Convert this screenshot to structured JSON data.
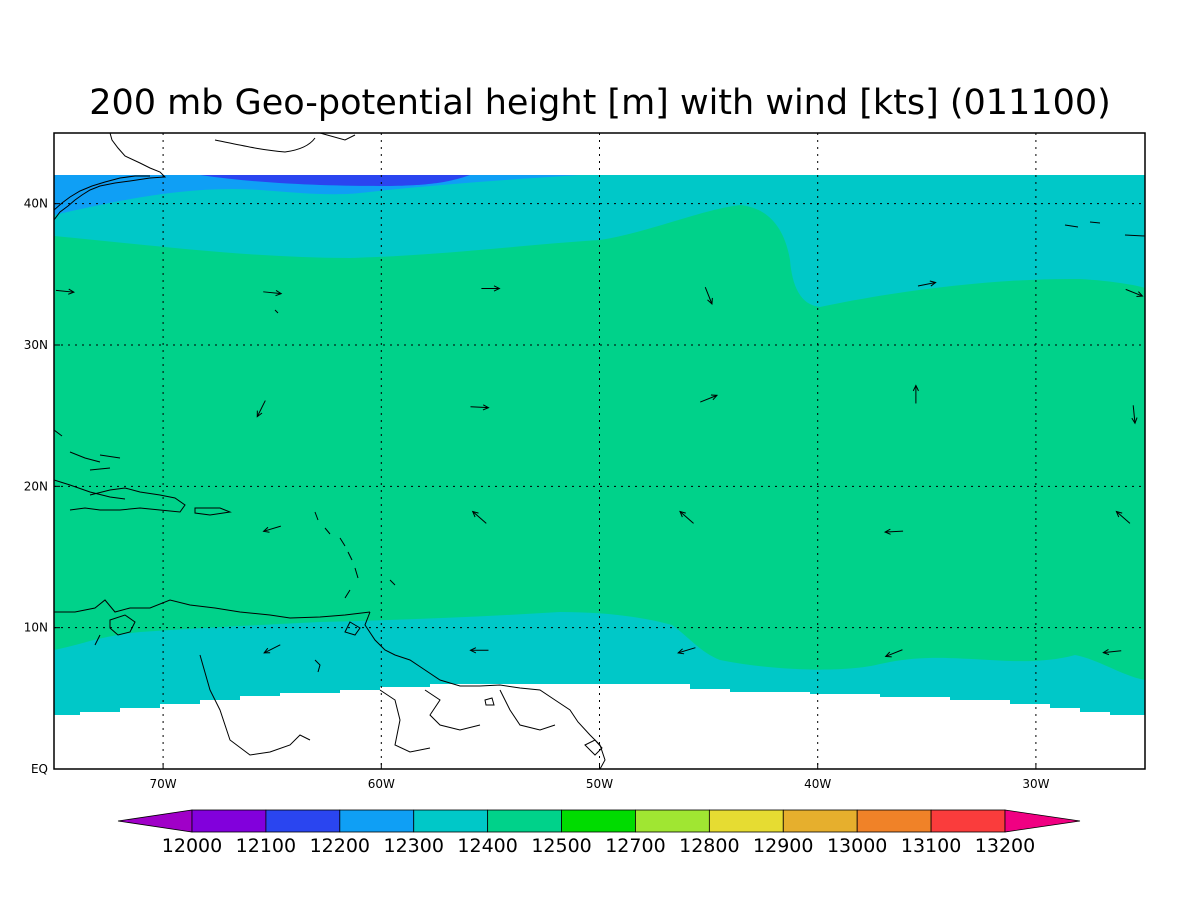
{
  "title": "200 mb Geo-potential height [m] with wind [kts] (011100)",
  "colors": {
    "band_12200": "#2a45f0",
    "band_12300": "#0f9ff5",
    "band_12400": "#00c8c8",
    "band_12500": "#00d28a",
    "background": "#ffffff",
    "outline": "#000000"
  },
  "chart_data": {
    "type": "heatmap",
    "projection": "lat-lon",
    "lon_range": [
      -75,
      -25
    ],
    "lat_range": [
      0,
      45
    ],
    "data_lat_range": [
      4,
      42
    ],
    "grid": true,
    "x_ticks": [
      {
        "value": -70,
        "label": "70W"
      },
      {
        "value": -60,
        "label": "60W"
      },
      {
        "value": -50,
        "label": "50W"
      },
      {
        "value": -40,
        "label": "40W"
      },
      {
        "value": -30,
        "label": "30W"
      }
    ],
    "y_ticks": [
      {
        "value": 0,
        "label": "EQ"
      },
      {
        "value": 10,
        "label": "10N"
      },
      {
        "value": 20,
        "label": "20N"
      },
      {
        "value": 30,
        "label": "30N"
      },
      {
        "value": 40,
        "label": "40N"
      }
    ],
    "colorbar": {
      "levels": [
        "12000",
        "12100",
        "12200",
        "12300",
        "12400",
        "12500",
        "12700",
        "12800",
        "12900",
        "13000",
        "13100",
        "13200"
      ],
      "colors": [
        "#a000c8",
        "#8200dc",
        "#2a45f0",
        "#0f9ff5",
        "#00c8c8",
        "#00d28a",
        "#00dc00",
        "#a0e632",
        "#e6dc32",
        "#e6af2d",
        "#f08228",
        "#fa3c3c",
        "#f00082"
      ],
      "extend": "both"
    },
    "contour_fields": [
      {
        "level": 12300,
        "color": "#0f9ff5",
        "north_boundary": [
          [
            -75,
            42
          ],
          [
            -25,
            42
          ]
        ]
      },
      {
        "level": 12400,
        "color": "#00c8c8"
      },
      {
        "level": 12500,
        "color": "#00d28a"
      }
    ],
    "wind_vectors": [
      {
        "lon": -74.5,
        "lat": 33.8,
        "u": 1,
        "v": -0.1
      },
      {
        "lon": -65,
        "lat": 33.7,
        "u": 1,
        "v": -0.1
      },
      {
        "lon": -55,
        "lat": 34,
        "u": 1,
        "v": 0
      },
      {
        "lon": -45,
        "lat": 33.5,
        "u": 0.4,
        "v": -1
      },
      {
        "lon": -35,
        "lat": 34.3,
        "u": 1,
        "v": 0.2
      },
      {
        "lon": -25.5,
        "lat": 33.7,
        "u": 1,
        "v": -0.4
      },
      {
        "lon": -65.5,
        "lat": 25.5,
        "u": -0.5,
        "v": -1
      },
      {
        "lon": -55.5,
        "lat": 25.6,
        "u": 1,
        "v": -0.05
      },
      {
        "lon": -45,
        "lat": 26.2,
        "u": 1,
        "v": 0.4
      },
      {
        "lon": -35.5,
        "lat": 26.5,
        "u": 0,
        "v": 1
      },
      {
        "lon": -25.5,
        "lat": 25.1,
        "u": 0.1,
        "v": -1
      },
      {
        "lon": -65,
        "lat": 17,
        "u": -1,
        "v": -0.3
      },
      {
        "lon": -55.5,
        "lat": 17.8,
        "u": -0.8,
        "v": 0.7
      },
      {
        "lon": -46,
        "lat": 17.8,
        "u": -0.8,
        "v": 0.7
      },
      {
        "lon": -36.5,
        "lat": 16.8,
        "u": -1,
        "v": -0.05
      },
      {
        "lon": -26,
        "lat": 17.8,
        "u": -0.8,
        "v": 0.7
      },
      {
        "lon": -65,
        "lat": 8.5,
        "u": -1,
        "v": -0.5
      },
      {
        "lon": -55.5,
        "lat": 8.4,
        "u": -1,
        "v": 0
      },
      {
        "lon": -46,
        "lat": 8.4,
        "u": -1,
        "v": -0.3
      },
      {
        "lon": -36.5,
        "lat": 8.2,
        "u": -1,
        "v": -0.4
      },
      {
        "lon": -26.5,
        "lat": 8.3,
        "u": -1,
        "v": -0.1
      }
    ]
  }
}
